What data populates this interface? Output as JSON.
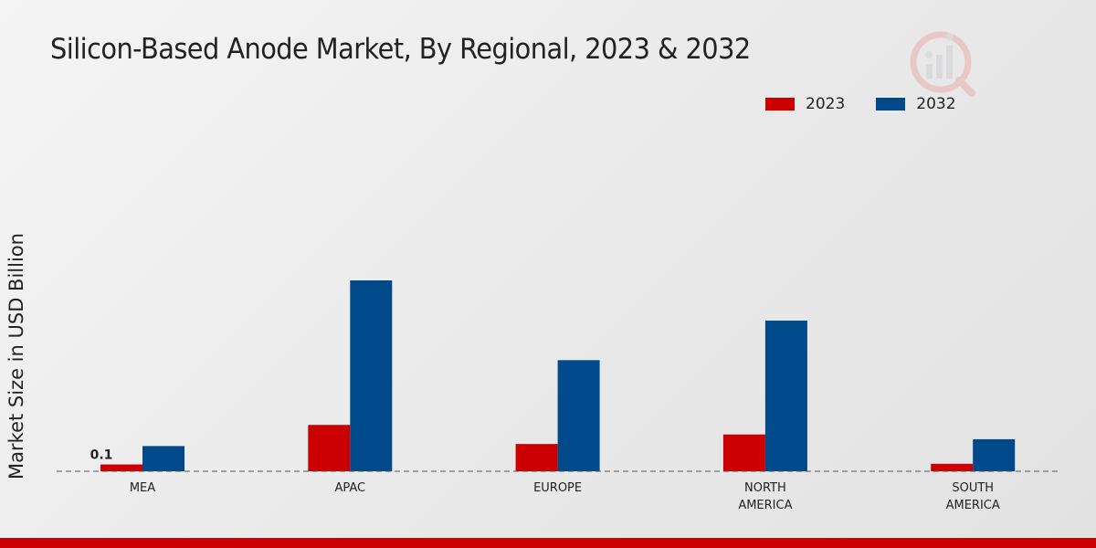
{
  "colors": {
    "series_2023": "#cc0000",
    "series_2032": "#004a8c",
    "bottom_bar": "#cc0000"
  },
  "chart_data": {
    "type": "bar",
    "title": "Silicon-Based Anode Market, By Regional, 2023 & 2032",
    "xlabel": "",
    "ylabel": "Market Size in USD Billion",
    "ylim": [
      0,
      2.8
    ],
    "grid": false,
    "legend_position": "top-right",
    "categories": [
      [
        "MEA"
      ],
      [
        "APAC"
      ],
      [
        "EUROPE"
      ],
      [
        "NORTH",
        "AMERICA"
      ],
      [
        "SOUTH",
        "AMERICA"
      ]
    ],
    "series": [
      {
        "name": "2023",
        "values": [
          0.1,
          0.68,
          0.4,
          0.54,
          0.11
        ]
      },
      {
        "name": "2032",
        "values": [
          0.37,
          2.8,
          1.63,
          2.21,
          0.47
        ]
      }
    ],
    "annotations": [
      {
        "series": 0,
        "category": 0,
        "text": "0.1"
      }
    ]
  }
}
